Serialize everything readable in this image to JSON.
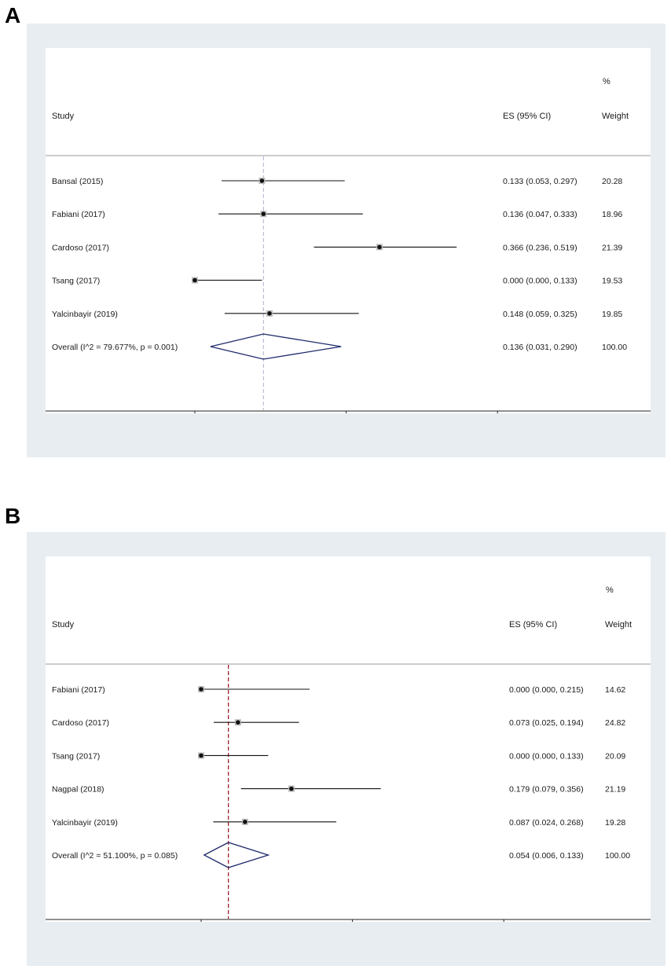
{
  "panels": [
    {
      "letter": "A",
      "header_study": "Study",
      "header_es": "ES (95% CI)",
      "header_pct": "%",
      "header_weight": "Weight",
      "x_ticks": [
        0,
        3,
        6
      ],
      "ref_line": {
        "value": 1.36,
        "style": "dashed",
        "color": "#b0b0cc"
      },
      "studies": [
        {
          "label": "Bansal  (2015)",
          "es": 1.33,
          "lo": 0.53,
          "hi": 2.97,
          "es_text": "0.133 (0.053, 0.297)",
          "weight": "20.28"
        },
        {
          "label": "Fabiani (2017)",
          "es": 1.36,
          "lo": 0.47,
          "hi": 3.33,
          "es_text": "0.136 (0.047, 0.333)",
          "weight": "18.96"
        },
        {
          "label": "Cardoso (2017)",
          "es": 3.66,
          "lo": 2.36,
          "hi": 5.19,
          "es_text": "0.366 (0.236, 0.519)",
          "weight": "21.39"
        },
        {
          "label": "Tsang (2017)",
          "es": 0.0,
          "lo": 0.0,
          "hi": 1.33,
          "es_text": "0.000 (0.000, 0.133)",
          "weight": "19.53"
        },
        {
          "label": "Yalcinbayir (2019)",
          "es": 1.48,
          "lo": 0.59,
          "hi": 3.25,
          "es_text": "0.148 (0.059, 0.325)",
          "weight": "19.85"
        }
      ],
      "overall": {
        "label": "Overall  (I^2 = 79.677%, p = 0.001)",
        "es": 1.36,
        "lo": 0.31,
        "hi": 2.9,
        "es_text": "0.136 (0.031, 0.290)",
        "weight": "100.00"
      }
    },
    {
      "letter": "B",
      "header_study": "Study",
      "header_es": "ES (95% CI)",
      "header_pct": "%",
      "header_weight": "Weight",
      "x_ticks": [
        0,
        3,
        6
      ],
      "ref_line": {
        "value": 0.54,
        "style": "dashed",
        "color": "#a3202a"
      },
      "studies": [
        {
          "label": "Fabiani (2017)",
          "es": 0.0,
          "lo": 0.0,
          "hi": 2.15,
          "es_text": "0.000 (0.000, 0.215)",
          "weight": "14.62"
        },
        {
          "label": "Cardoso (2017)",
          "es": 0.73,
          "lo": 0.25,
          "hi": 1.94,
          "es_text": "0.073 (0.025, 0.194)",
          "weight": "24.82"
        },
        {
          "label": "Tsang (2017)",
          "es": 0.0,
          "lo": 0.0,
          "hi": 1.33,
          "es_text": "0.000 (0.000, 0.133)",
          "weight": "20.09"
        },
        {
          "label": "Nagpal (2018)",
          "es": 1.79,
          "lo": 0.79,
          "hi": 3.56,
          "es_text": "0.179 (0.079, 0.356)",
          "weight": "21.19"
        },
        {
          "label": "Yalcinbayir (2019)",
          "es": 0.87,
          "lo": 0.24,
          "hi": 2.68,
          "es_text": "0.087 (0.024, 0.268)",
          "weight": "19.28"
        }
      ],
      "overall": {
        "label": "Overall  (I^2 = 51.100%, p = 0.085)",
        "es": 0.54,
        "lo": 0.06,
        "hi": 1.33,
        "es_text": "0.054 (0.006, 0.133)",
        "weight": "100.00"
      }
    }
  ],
  "chart_data": [
    {
      "type": "forest",
      "x_ticks": [
        0,
        3,
        6
      ],
      "categories": [
        "Bansal  (2015)",
        "Fabiani (2017)",
        "Cardoso (2017)",
        "Tsang (2017)",
        "Yalcinbayir (2019)",
        "Overall  (I^2 = 79.677%, p = 0.001)"
      ],
      "es": [
        0.133,
        0.136,
        0.366,
        0.0,
        0.148,
        0.136
      ],
      "ci_low": [
        0.053,
        0.047,
        0.236,
        0.0,
        0.059,
        0.031
      ],
      "ci_high": [
        0.297,
        0.333,
        0.519,
        0.133,
        0.325,
        0.29
      ],
      "weight_pct": [
        20.28,
        18.96,
        21.39,
        19.53,
        19.85,
        100.0
      ]
    },
    {
      "type": "forest",
      "x_ticks": [
        0,
        3,
        6
      ],
      "categories": [
        "Fabiani (2017)",
        "Cardoso (2017)",
        "Tsang (2017)",
        "Nagpal (2018)",
        "Yalcinbayir (2019)",
        "Overall  (I^2 = 51.100%, p = 0.085)"
      ],
      "es": [
        0.0,
        0.073,
        0.0,
        0.179,
        0.087,
        0.054
      ],
      "ci_low": [
        0.0,
        0.025,
        0.0,
        0.079,
        0.024,
        0.006
      ],
      "ci_high": [
        0.215,
        0.194,
        0.133,
        0.356,
        0.268,
        0.133
      ],
      "weight_pct": [
        14.62,
        24.82,
        20.09,
        21.19,
        19.28,
        100.0
      ]
    }
  ]
}
